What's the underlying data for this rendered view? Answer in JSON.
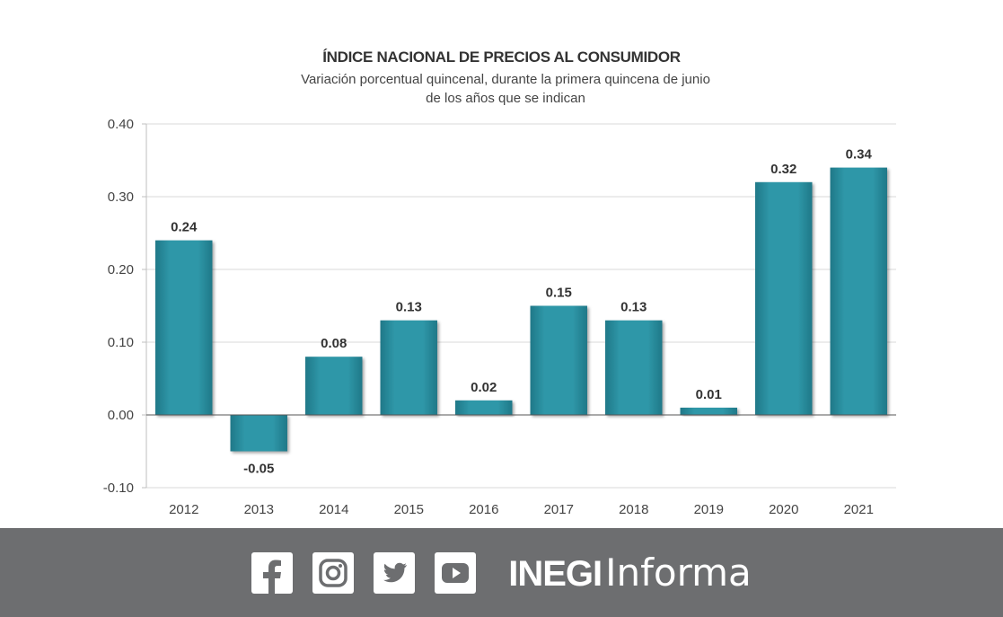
{
  "chart_data": {
    "type": "bar",
    "title": "ÍNDICE NACIONAL DE PRECIOS AL CONSUMIDOR",
    "subtitle": "Variación porcentual quincenal, durante la primera quincena de junio de los años que se indican",
    "categories": [
      "2012",
      "2013",
      "2014",
      "2015",
      "2016",
      "2017",
      "2018",
      "2019",
      "2020",
      "2021"
    ],
    "values": [
      0.24,
      -0.05,
      0.08,
      0.13,
      0.02,
      0.15,
      0.13,
      0.01,
      0.32,
      0.34
    ],
    "data_labels": [
      "0.24",
      "-0.05",
      "0.08",
      "0.13",
      "0.02",
      "0.15",
      "0.13",
      "0.01",
      "0.32",
      "0.34"
    ],
    "ylim": [
      -0.1,
      0.4
    ],
    "yticks": [
      "0.40",
      "0.30",
      "0.20",
      "0.10",
      "0.00",
      "-0.10"
    ],
    "ytick_values": [
      0.4,
      0.3,
      0.2,
      0.1,
      0.0,
      -0.1
    ],
    "grid": true,
    "bar_color": "#2b8fa0"
  },
  "footer": {
    "brand_bold": "INEGI",
    "brand_regular": "Informa",
    "icons": [
      "facebook-icon",
      "instagram-icon",
      "twitter-icon",
      "youtube-icon"
    ],
    "background": "#6d6e70"
  }
}
